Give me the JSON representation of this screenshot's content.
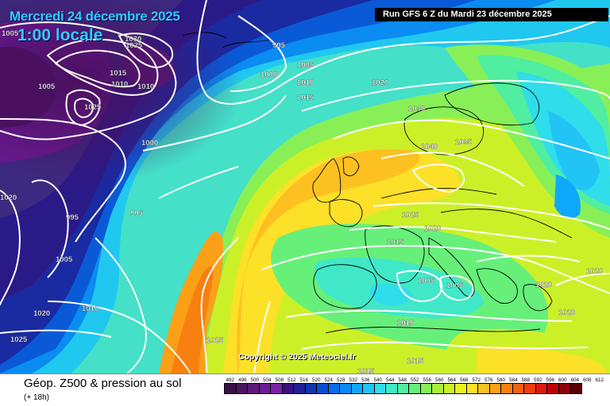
{
  "header": {
    "date": "Mercredi 24 décembre 2025",
    "time": "1:00 locale",
    "run": "Run GFS 6 Z du Mardi 23 décembre 2025"
  },
  "copyright": "Copyright © 2025 Meteociel.fr",
  "footer": {
    "title": "Géop. Z500 & pression au sol",
    "subtitle": "(+ 18h)"
  },
  "legend": {
    "ticks": [
      "492",
      "496",
      "500",
      "504",
      "508",
      "512",
      "516",
      "520",
      "524",
      "528",
      "532",
      "536",
      "540",
      "544",
      "548",
      "552",
      "556",
      "560",
      "564",
      "568",
      "572",
      "576",
      "580",
      "584",
      "588",
      "592",
      "596",
      "600",
      "604",
      "608",
      "612"
    ],
    "colors": [
      "#3c0f46",
      "#4d1560",
      "#5c1a79",
      "#6a1d92",
      "#7a22a8",
      "#3a0f80",
      "#202090",
      "#1234b0",
      "#0a4fd0",
      "#0a6ce8",
      "#0a8af5",
      "#10a8fa",
      "#20c4f5",
      "#30ddea",
      "#40e8c8",
      "#50eea0",
      "#66f07a",
      "#88f056",
      "#aaf03a",
      "#ccf028",
      "#ecf020",
      "#fde028",
      "#fcc020",
      "#fca018",
      "#f88010",
      "#f46010",
      "#ee3e10",
      "#e01810",
      "#c00008",
      "#900008",
      "#5a0008"
    ]
  },
  "map": {
    "isobar_labels": [
      "1005",
      "1025",
      "1030",
      "1015",
      "1010",
      "1010",
      "1005",
      "1025",
      "1020",
      "1000",
      "995",
      "995",
      "1005",
      "1010",
      "1020",
      "1025",
      "1025",
      "995",
      "1000",
      "1005",
      "1010",
      "1015",
      "1020",
      "1030",
      "1040",
      "1035",
      "1025",
      "1020",
      "1015",
      "1005",
      "1005",
      "1010",
      "1015",
      "1020",
      "1020",
      "1020",
      "1015"
    ]
  }
}
